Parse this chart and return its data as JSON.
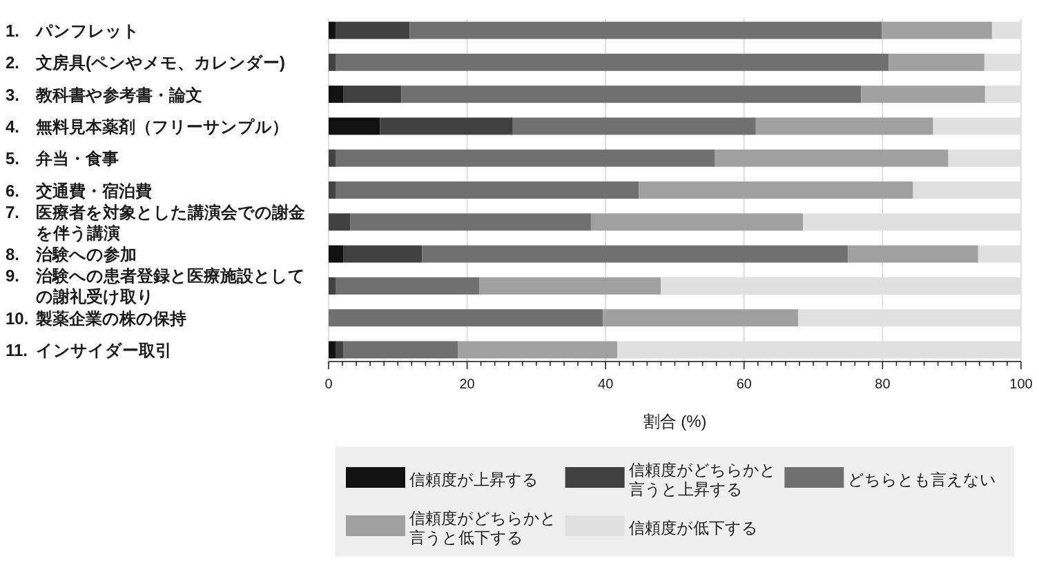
{
  "chart_data": {
    "type": "bar",
    "orientation": "horizontal",
    "stacked": true,
    "categories": [
      "1. パンフレット",
      "2. 文房具(ペンやメモ、カレンダー)",
      "3. 教科書や参考書・論文",
      "4. 無料見本薬剤（フリーサンプル）",
      "5. 弁当・食事",
      "6. 交通費・宿泊費",
      "7. 医療者を対象とした講演会での謝金を伴う講演",
      "8. 治験への参加",
      "9. 治験への患者登録と医療施設としての謝礼受け取り",
      "10. 製薬企業の株の保持",
      "11. インサイダー取引"
    ],
    "series": [
      {
        "name": "信頼度が上昇する",
        "color": "#111111",
        "values": [
          1.0,
          0,
          2.1,
          7.4,
          0,
          0,
          0,
          2.1,
          0,
          0,
          1.0
        ]
      },
      {
        "name": "信頼度がどちらかと言うと上昇する",
        "color": "#414141",
        "values": [
          10.7,
          1.0,
          8.4,
          19.2,
          1.0,
          1.0,
          3.1,
          11.4,
          1.0,
          0,
          1.1
        ]
      },
      {
        "name": "どちらとも言えない",
        "color": "#707070",
        "values": [
          68.2,
          79.9,
          66.4,
          35.1,
          54.8,
          43.8,
          34.8,
          61.5,
          20.8,
          39.6,
          16.6
        ]
      },
      {
        "name": "信頼度がどちらかと言うと低下する",
        "color": "#a0a0a0",
        "values": [
          15.9,
          13.8,
          17.9,
          25.6,
          33.7,
          39.6,
          30.6,
          18.8,
          26.2,
          28.2,
          23.0
        ]
      },
      {
        "name": "信頼度が低下する",
        "color": "#e0e0e0",
        "values": [
          4.2,
          5.3,
          5.2,
          12.7,
          10.5,
          15.6,
          31.5,
          6.2,
          52.0,
          32.2,
          58.3
        ]
      }
    ],
    "xlabel": "割合 (%)",
    "xlim": [
      0,
      100
    ],
    "xticks": [
      0,
      {
        "value": 2,
        "label": null
      },
      {
        "value": 4,
        "label": null
      },
      {
        "value": 6,
        "label": null
      },
      {
        "value": 8,
        "label": null
      },
      {
        "value": 10,
        "label": null
      },
      {
        "value": 12,
        "label": null
      },
      {
        "value": 14,
        "label": null
      },
      {
        "value": 16,
        "label": null
      },
      {
        "value": 18,
        "label": null
      },
      20,
      {
        "value": 22,
        "label": null
      },
      {
        "value": 24,
        "label": null
      },
      {
        "value": 26,
        "label": null
      },
      {
        "value": 28,
        "label": null
      },
      {
        "value": 30,
        "label": null
      },
      {
        "value": 32,
        "label": null
      },
      {
        "value": 34,
        "label": null
      },
      {
        "value": 36,
        "label": null
      },
      {
        "value": 38,
        "label": null
      },
      40,
      {
        "value": 42,
        "label": null
      },
      {
        "value": 44,
        "label": null
      },
      {
        "value": 46,
        "label": null
      },
      {
        "value": 48,
        "label": null
      },
      {
        "value": 50,
        "label": null
      },
      {
        "value": 52,
        "label": null
      },
      {
        "value": 54,
        "label": null
      },
      {
        "value": 56,
        "label": null
      },
      {
        "value": 58,
        "label": null
      },
      60,
      {
        "value": 62,
        "label": null
      },
      {
        "value": 64,
        "label": null
      },
      {
        "value": 66,
        "label": null
      },
      {
        "value": 68,
        "label": null
      },
      {
        "value": 70,
        "label": null
      },
      {
        "value": 72,
        "label": null
      },
      {
        "value": 74,
        "label": null
      },
      {
        "value": 76,
        "label": null
      },
      {
        "value": 78,
        "label": null
      },
      80,
      {
        "value": 82,
        "label": null
      },
      {
        "value": 84,
        "label": null
      },
      {
        "value": 86,
        "label": null
      },
      {
        "value": 88,
        "label": null
      },
      {
        "value": 90,
        "label": null
      },
      {
        "value": 92,
        "label": null
      },
      {
        "value": 94,
        "label": null
      },
      {
        "value": 96,
        "label": null
      },
      {
        "value": 98,
        "label": null
      },
      100
    ],
    "grid": "x",
    "legend": "bottom"
  }
}
